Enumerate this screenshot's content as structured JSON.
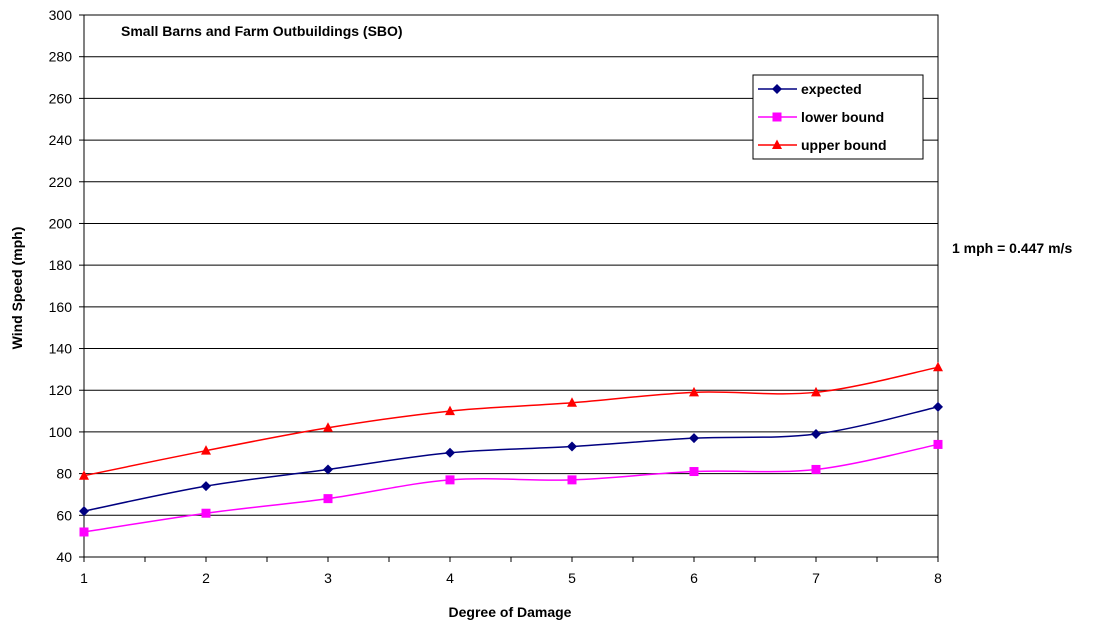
{
  "chart_data": {
    "type": "line",
    "title": "Small Barns and Farm Outbuildings (SBO)",
    "xlabel": "Degree of Damage",
    "ylabel": "Wind Speed (mph)",
    "annotation": "1 mph = 0.447 m/s",
    "x": [
      1,
      2,
      3,
      4,
      5,
      6,
      7,
      8
    ],
    "xlim": [
      1,
      8
    ],
    "ylim": [
      40,
      300
    ],
    "ytick_step": 20,
    "grid": true,
    "legend_position": "top-right",
    "series": [
      {
        "name": "expected",
        "color": "#000080",
        "marker": "diamond",
        "values": [
          62,
          74,
          82,
          90,
          93,
          97,
          99,
          112
        ]
      },
      {
        "name": "lower bound",
        "color": "#ff00ff",
        "marker": "square",
        "values": [
          52,
          61,
          68,
          77,
          77,
          81,
          82,
          94
        ]
      },
      {
        "name": "upper bound",
        "color": "#ff0000",
        "marker": "triangle",
        "values": [
          79,
          91,
          102,
          110,
          114,
          119,
          119,
          131
        ]
      }
    ]
  }
}
